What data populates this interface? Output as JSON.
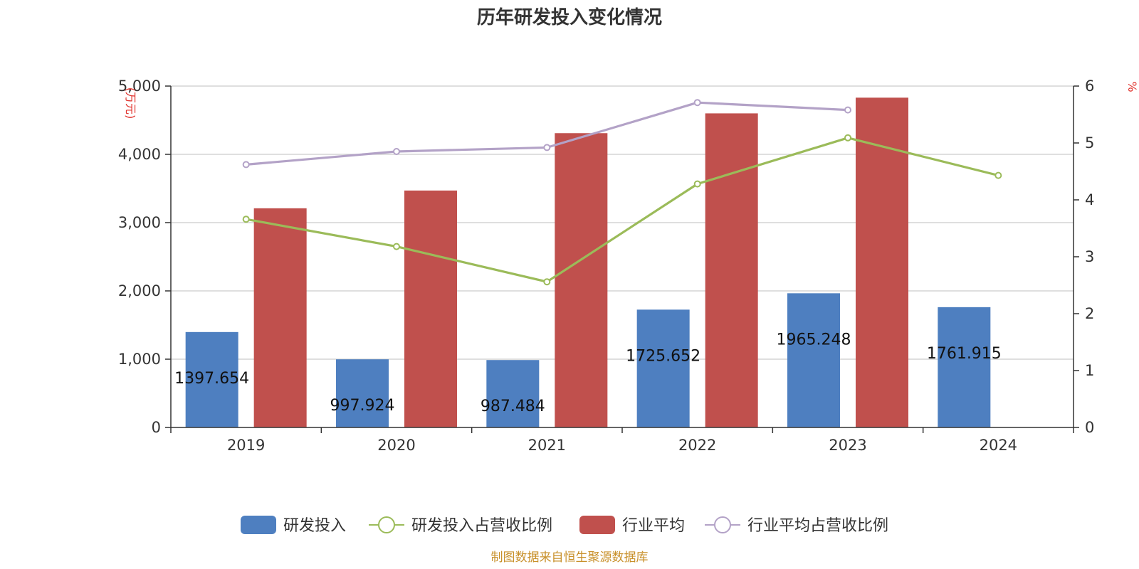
{
  "chart_data": {
    "type": "bar",
    "title": "历年研发投入变化情况",
    "categories": [
      "2019",
      "2020",
      "2021",
      "2022",
      "2023",
      "2024"
    ],
    "y_left": {
      "unit": "(万元)",
      "ylim": [
        0,
        5000
      ],
      "ticks": [
        "0",
        "1,000",
        "2,000",
        "3,000",
        "4,000",
        "5,000"
      ],
      "tick_values": [
        0,
        1000,
        2000,
        3000,
        4000,
        5000
      ]
    },
    "y_right": {
      "unit": "%",
      "ylim": [
        0,
        6
      ],
      "ticks": [
        "0",
        "1",
        "2",
        "3",
        "4",
        "5",
        "6"
      ],
      "tick_values": [
        0,
        1,
        2,
        3,
        4,
        5,
        6
      ]
    },
    "series": [
      {
        "name": "研发投入",
        "kind": "bar",
        "axis": "left",
        "color": "#4e7fc0",
        "values": [
          1397.654,
          997.924,
          987.484,
          1725.652,
          1965.248,
          1761.915
        ],
        "labels": [
          "1397.654",
          "997.924",
          "987.484",
          "1725.652",
          "1965.248",
          "1761.915"
        ]
      },
      {
        "name": "研发投入占营收比例",
        "kind": "line",
        "axis": "right",
        "color": "#9bbb59",
        "values": [
          3.66,
          3.18,
          2.56,
          4.28,
          5.09,
          4.43
        ]
      },
      {
        "name": "行业平均",
        "kind": "bar",
        "axis": "left",
        "color": "#c0504d",
        "values": [
          3210,
          3470,
          4310,
          4600,
          4830,
          null
        ]
      },
      {
        "name": "行业平均占营收比例",
        "kind": "line",
        "axis": "right",
        "color": "#b3a2c7",
        "values": [
          4.62,
          4.85,
          4.92,
          5.71,
          5.58,
          null
        ]
      }
    ],
    "grid": true,
    "legend_position": "bottom"
  },
  "footer": "制图数据来自恒生聚源数据库"
}
